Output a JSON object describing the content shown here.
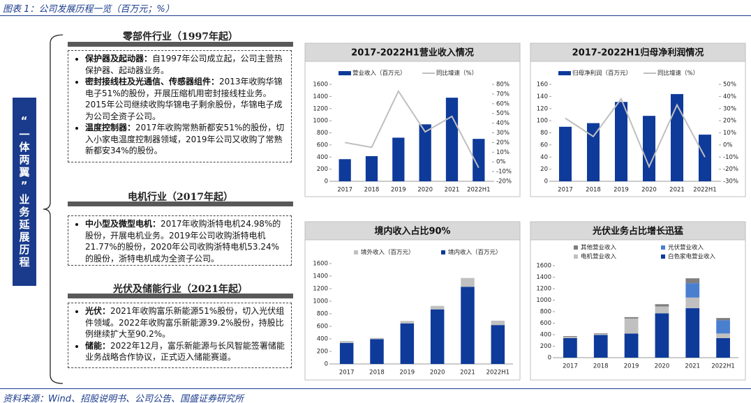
{
  "header": {
    "title": "图表 1：公司发展历程一览（百万元；%）"
  },
  "sidebar": {
    "label": "“一体两翼”业务延展历程"
  },
  "sections": [
    {
      "title": "零部件行业（1997年起）",
      "items": [
        {
          "term": "保护器及起动器：",
          "text": "自1997年公司成立起，公司主营热保护器、起动器业务。"
        },
        {
          "term": "密封接线柱及光通信、传感器组件：",
          "text": "2013年收购华锦电子51%的股份，开展压缩机用密封接线柱业务。2015年公司继续收购华锦电子剩余股份，华锦电子成为公司全资子公司。"
        },
        {
          "term": "温度控制器：",
          "text": "2017年收购常熟新都安51%的股份，切入小家电温度控制器领域，2019年公司又收购了常熟新都安34%的股份。"
        }
      ]
    },
    {
      "title": "电机行业（2017年起）",
      "items": [
        {
          "term": "中小型及微型电机：",
          "text": "2017年收购浙特电机24.98%的股份，开展电机业务。2019年公司收购浙特电机21.77%的股份，2020年公司收购浙特电机53.24%的股份，浙特电机成为全资子公司。"
        }
      ]
    },
    {
      "title": "光伏及储能行业（2021年起）",
      "items": [
        {
          "term": "光伏：",
          "text": "2021年收购富乐新能源51%股份，切入光伏组件领域。2022年收购富乐新能源39.2%股份，持股比例继续扩大至90.2%。"
        },
        {
          "term": "储能：",
          "text": "2022年12月，富乐新能源与长风智能签署储能业务战略合作协议，正式迈入储能赛道。"
        }
      ]
    }
  ],
  "source": "资料来源：Wind、招股说明书、公司公告、国盛证券研究所",
  "chart_data": [
    {
      "type": "combo",
      "title": "2017-2022H1营业收入情况",
      "categories": [
        "2017",
        "2018",
        "2019",
        "2020",
        "2021",
        "2022H1"
      ],
      "series": [
        {
          "name": "营业收入（百万元）",
          "color": "#0e3a9a",
          "values": [
            365,
            415,
            720,
            940,
            1380,
            700
          ]
        },
        {
          "name": "同比增速（%）",
          "color": "#bfbfbf",
          "axis": "y2",
          "values": [
            20,
            15,
            73,
            31,
            47,
            -6
          ]
        }
      ],
      "ylim": [
        0,
        1600
      ],
      "yticks": [
        0,
        200,
        400,
        600,
        800,
        1000,
        1200,
        1400,
        1600
      ],
      "y2lim": [
        -20,
        80
      ],
      "y2ticks": [
        {
          "value": -20,
          "label": "-20%"
        },
        {
          "value": -10,
          "label": "-10%"
        },
        {
          "value": 0,
          "label": "0%"
        },
        {
          "value": 10,
          "label": "10%"
        },
        {
          "value": 20,
          "label": "20%"
        },
        {
          "value": 30,
          "label": "30%"
        },
        {
          "value": 40,
          "label": "40%"
        },
        {
          "value": 50,
          "label": "50%"
        },
        {
          "value": 60,
          "label": "60%"
        },
        {
          "value": 70,
          "label": "70%"
        },
        {
          "value": 80,
          "label": "80%"
        }
      ]
    },
    {
      "type": "combo",
      "title": "2017-2022H1归母净利润情况",
      "categories": [
        "2017",
        "2018",
        "2019",
        "2020",
        "2021",
        "2022H1"
      ],
      "series": [
        {
          "name": "归母净利润（百万元）",
          "color": "#0e3a9a",
          "values": [
            90,
            96,
            131,
            108,
            144,
            77
          ]
        },
        {
          "name": "同比增速（%）",
          "color": "#bfbfbf",
          "axis": "y2",
          "values": [
            22,
            7,
            38,
            -18,
            33,
            -10
          ]
        }
      ],
      "ylim": [
        0,
        160
      ],
      "yticks": [
        0,
        20,
        40,
        60,
        80,
        100,
        120,
        140,
        160
      ],
      "y2lim": [
        -30,
        50
      ],
      "y2ticks": [
        {
          "value": -30,
          "label": "-30%"
        },
        {
          "value": -20,
          "label": "-20%"
        },
        {
          "value": -10,
          "label": "-10%"
        },
        {
          "value": 0,
          "label": "0%"
        },
        {
          "value": 10,
          "label": "10%"
        },
        {
          "value": 20,
          "label": "20%"
        },
        {
          "value": 30,
          "label": "30%"
        },
        {
          "value": 40,
          "label": "40%"
        },
        {
          "value": 50,
          "label": "50%"
        }
      ]
    },
    {
      "type": "stacked_bar",
      "title": "境内收入占比90%",
      "categories": [
        "2017",
        "2018",
        "2019",
        "2020",
        "2021",
        "2022H1"
      ],
      "series": [
        {
          "name": "境内收入（百万元）",
          "color": "#0e3a9a",
          "values": [
            335,
            395,
            645,
            870,
            1230,
            620
          ]
        },
        {
          "name": "境外收入（百万元）",
          "color": "#c0c0c0",
          "values": [
            30,
            20,
            40,
            55,
            140,
            70
          ]
        }
      ],
      "ylim": [
        0,
        1600
      ],
      "yticks": [
        0,
        200,
        400,
        600,
        800,
        1000,
        1200,
        1400,
        1600
      ]
    },
    {
      "type": "stacked_bar",
      "title": "光伏业务占比增长迅猛",
      "categories": [
        "2017",
        "2018",
        "2019",
        "2020",
        "2021",
        "2022H1"
      ],
      "series": [
        {
          "name": "白色家电营业收入",
          "color": "#0e3a9a",
          "values": [
            340,
            395,
            420,
            770,
            860,
            340
          ]
        },
        {
          "name": "电机营业收入",
          "color": "#c0c0c0",
          "values": [
            20,
            20,
            260,
            120,
            185,
            80
          ]
        },
        {
          "name": "光伏营业收入",
          "color": "#4a7fd0",
          "values": [
            0,
            0,
            0,
            0,
            250,
            230
          ]
        },
        {
          "name": "其他营业收入",
          "color": "#7f7f7f",
          "values": [
            15,
            10,
            25,
            40,
            85,
            40
          ]
        }
      ],
      "ylim": [
        0,
        1600
      ],
      "yticks": [
        0,
        200,
        400,
        600,
        800,
        1000,
        1200,
        1400,
        1600
      ]
    }
  ]
}
